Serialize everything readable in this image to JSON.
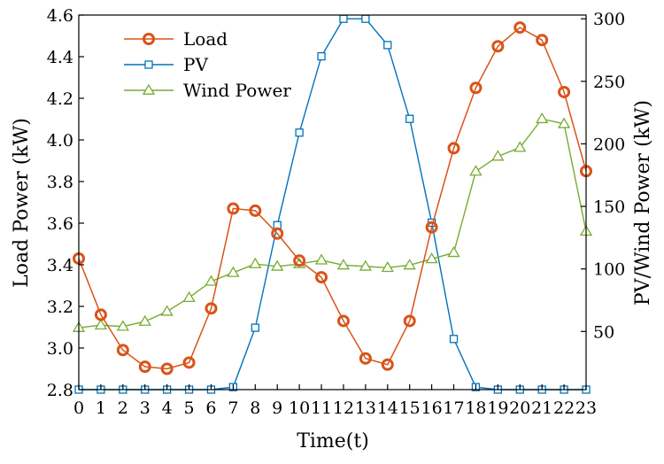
{
  "chart_data": {
    "type": "line",
    "title": "",
    "xlabel": "Time(t)",
    "ylabel_left": "Load Power (kW)",
    "ylabel_right": "PV/Wind Power (kW)",
    "x": [
      0,
      1,
      2,
      3,
      4,
      5,
      6,
      7,
      8,
      9,
      10,
      11,
      12,
      13,
      14,
      15,
      16,
      17,
      18,
      19,
      20,
      21,
      22,
      23
    ],
    "xlim": [
      0,
      23
    ],
    "ylim_left": [
      2.8,
      4.6
    ],
    "ylim_right": [
      3.5,
      303
    ],
    "yticks_left": [
      "2.8",
      "3.0",
      "3.2",
      "3.4",
      "3.6",
      "3.8",
      "4.0",
      "4.2",
      "4.4",
      "4.6"
    ],
    "yticks_right": [
      "50",
      "100",
      "150",
      "200",
      "250",
      "300"
    ],
    "grid": false,
    "legend_position": "top-left",
    "colors": {
      "load": "#d95319",
      "pv": "#0072bd",
      "wind": "#77ac30"
    },
    "series": [
      {
        "name": "Load",
        "axis": "left",
        "marker": "circle",
        "color": "#d95319",
        "values": [
          3.43,
          3.16,
          2.99,
          2.91,
          2.9,
          2.93,
          3.19,
          3.67,
          3.66,
          3.55,
          3.42,
          3.34,
          3.13,
          2.95,
          2.92,
          3.13,
          3.58,
          3.96,
          4.25,
          4.45,
          4.54,
          4.48,
          4.23,
          3.85
        ]
      },
      {
        "name": "PV",
        "axis": "right",
        "marker": "square",
        "color": "#0072bd",
        "values": [
          3.5,
          3.5,
          3.5,
          3.5,
          3.5,
          3.5,
          3.5,
          5.5,
          53,
          135,
          209,
          270,
          300,
          300,
          279,
          220,
          137,
          44,
          5.5,
          3.5,
          3.5,
          3.5,
          3.5,
          3.5
        ]
      },
      {
        "name": "Wind Power",
        "axis": "right",
        "marker": "triangle",
        "color": "#77ac30",
        "values": [
          53,
          55,
          54,
          58,
          66,
          77,
          90,
          97,
          104,
          102,
          104,
          107,
          103,
          102,
          101,
          103,
          108,
          113,
          178,
          190,
          197,
          220,
          216,
          130
        ]
      }
    ]
  }
}
